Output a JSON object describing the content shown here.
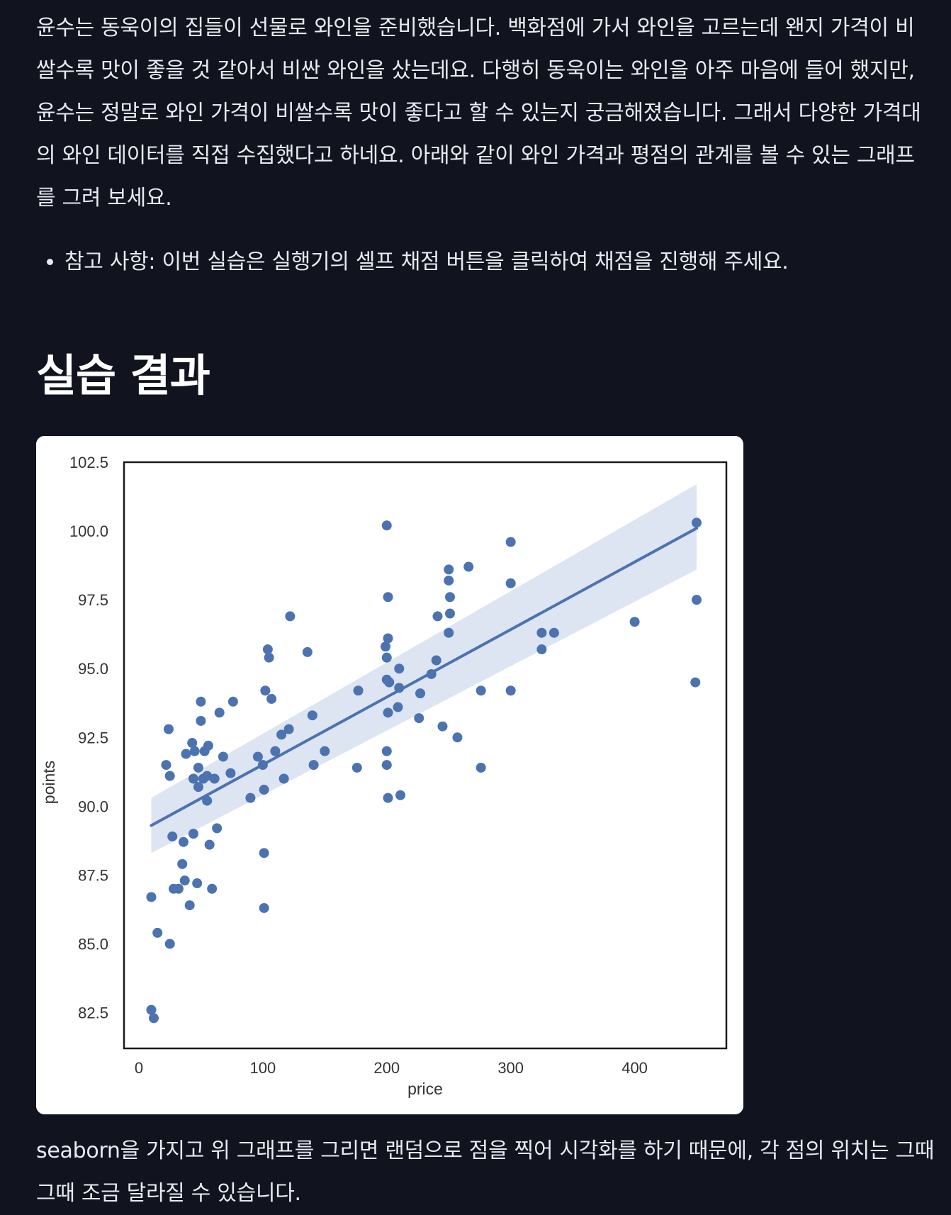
{
  "intro_text": "윤수는 동욱이의 집들이 선물로 와인을 준비했습니다. 백화점에 가서 와인을 고르는데 왠지 가격이 비쌀수록 맛이 좋을 것 같아서 비싼 와인을 샀는데요. 다행히 동욱이는 와인을 아주 마음에 들어 했지만, 윤수는 정말로 와인 가격이 비쌀수록 맛이 좋다고 할 수 있는지 궁금해졌습니다. 그래서 다양한 가격대의 와인 데이터를 직접 수집했다고 하네요. 아래와 같이 와인 가격과 평점의 관계를 볼 수 있는 그래프를 그려 보세요.",
  "notes": [
    "참고 사항: 이번 실습은 실행기의 셀프 채점 버튼을 클릭하여 채점을 진행해 주세요."
  ],
  "section_title": "실습 결과",
  "outro_text": "seaborn을 가지고 위 그래프를 그리면 랜덤으로 점을 찍어 시각화를 하기 때문에, 각 점의 위치는 그때그때 조금 달라질 수 있습니다.",
  "colors": {
    "points": "#4c72b0",
    "regression_line": "#4c72b0",
    "confidence_band": "#dde4f2"
  },
  "chart_data": {
    "type": "scatter",
    "xlabel": "price",
    "ylabel": "points",
    "xlim": [
      -12,
      474
    ],
    "ylim": [
      81.2,
      102.5
    ],
    "x_ticks": [
      0,
      100,
      200,
      300,
      400
    ],
    "y_ticks": [
      82.5,
      85.0,
      87.5,
      90.0,
      92.5,
      95.0,
      97.5,
      100.0,
      102.5
    ],
    "grid": false,
    "regression": {
      "x": [
        10,
        450
      ],
      "y": [
        89.3,
        100.1
      ],
      "ci_upper": [
        90.3,
        101.7
      ],
      "ci_lower": [
        88.3,
        98.6
      ]
    },
    "points": [
      [
        10,
        86.7
      ],
      [
        15,
        85.4
      ],
      [
        10,
        82.6
      ],
      [
        12,
        82.3
      ],
      [
        25,
        85.0
      ],
      [
        24,
        92.8
      ],
      [
        22,
        91.5
      ],
      [
        25,
        91.1
      ],
      [
        27,
        88.9
      ],
      [
        28,
        87.0
      ],
      [
        32,
        87.0
      ],
      [
        35,
        87.9
      ],
      [
        37,
        87.3
      ],
      [
        36,
        88.7
      ],
      [
        38,
        91.9
      ],
      [
        41,
        86.4
      ],
      [
        43,
        92.3
      ],
      [
        45,
        92.0
      ],
      [
        44,
        91.0
      ],
      [
        44,
        89.0
      ],
      [
        47,
        87.2
      ],
      [
        48,
        90.7
      ],
      [
        48,
        91.4
      ],
      [
        50,
        93.1
      ],
      [
        50,
        93.8
      ],
      [
        52,
        91.0
      ],
      [
        53,
        92.0
      ],
      [
        55,
        91.1
      ],
      [
        56,
        92.2
      ],
      [
        55,
        90.2
      ],
      [
        57,
        88.6
      ],
      [
        59,
        87.0
      ],
      [
        61,
        91.0
      ],
      [
        63,
        89.2
      ],
      [
        65,
        93.4
      ],
      [
        68,
        91.8
      ],
      [
        74,
        91.2
      ],
      [
        76,
        93.8
      ],
      [
        90,
        90.3
      ],
      [
        96,
        91.8
      ],
      [
        100,
        91.5
      ],
      [
        102,
        94.2
      ],
      [
        101,
        88.3
      ],
      [
        101,
        86.3
      ],
      [
        101,
        90.6
      ],
      [
        104,
        95.7
      ],
      [
        105,
        95.4
      ],
      [
        107,
        93.9
      ],
      [
        110,
        92.0
      ],
      [
        115,
        92.6
      ],
      [
        117,
        91.0
      ],
      [
        121,
        92.8
      ],
      [
        122,
        96.9
      ],
      [
        136,
        95.6
      ],
      [
        140,
        93.3
      ],
      [
        141,
        91.5
      ],
      [
        150,
        92.0
      ],
      [
        176,
        91.4
      ],
      [
        177,
        94.2
      ],
      [
        200,
        100.2
      ],
      [
        199,
        95.8
      ],
      [
        200,
        95.4
      ],
      [
        201,
        96.1
      ],
      [
        201,
        97.6
      ],
      [
        200,
        94.6
      ],
      [
        202,
        94.5
      ],
      [
        201,
        93.4
      ],
      [
        200,
        92.0
      ],
      [
        200,
        91.5
      ],
      [
        201,
        90.3
      ],
      [
        210,
        95.0
      ],
      [
        210,
        94.3
      ],
      [
        209,
        93.6
      ],
      [
        211,
        90.4
      ],
      [
        227,
        94.1
      ],
      [
        226,
        93.2
      ],
      [
        236,
        94.8
      ],
      [
        240,
        95.3
      ],
      [
        241,
        96.9
      ],
      [
        245,
        92.9
      ],
      [
        250,
        98.2
      ],
      [
        250,
        98.6
      ],
      [
        251,
        97.6
      ],
      [
        251,
        97.0
      ],
      [
        250,
        96.3
      ],
      [
        257,
        92.5
      ],
      [
        266,
        98.7
      ],
      [
        276,
        94.2
      ],
      [
        276,
        91.4
      ],
      [
        300,
        99.6
      ],
      [
        300,
        98.1
      ],
      [
        300,
        94.2
      ],
      [
        325,
        96.3
      ],
      [
        325,
        95.7
      ],
      [
        335,
        96.3
      ],
      [
        400,
        96.7
      ],
      [
        450,
        100.3
      ],
      [
        450,
        97.5
      ],
      [
        449,
        94.5
      ]
    ]
  }
}
